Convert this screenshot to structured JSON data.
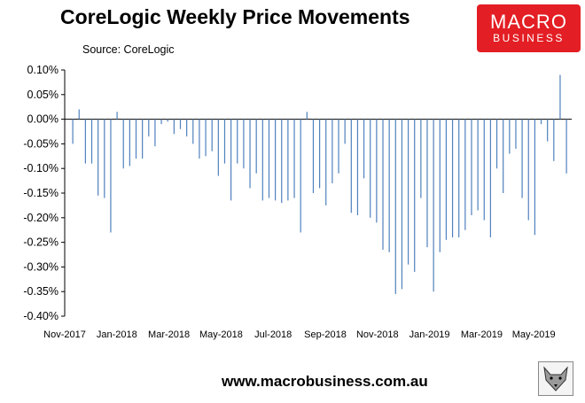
{
  "header": {
    "title": "CoreLogic Weekly Price Movements",
    "source": "Source: CoreLogic"
  },
  "logo": {
    "line1": "MACRO",
    "line2": "BUSINESS",
    "bg_color": "#e31e24"
  },
  "footer": {
    "website": "www.macrobusiness.com.au"
  },
  "colors": {
    "bar": "#4f81bd",
    "axis": "#000000"
  },
  "chart_data": {
    "type": "bar",
    "title": "CoreLogic Weekly Price Movements",
    "xlabel": "",
    "ylabel": "",
    "ylim": [
      -0.4,
      0.1
    ],
    "y_ticks": [
      0.1,
      0.05,
      0.0,
      -0.05,
      -0.1,
      -0.15,
      -0.2,
      -0.25,
      -0.3,
      -0.35,
      -0.4
    ],
    "y_tick_labels": [
      "0.10%",
      "0.05%",
      "0.00%",
      "-0.05%",
      "-0.10%",
      "-0.15%",
      "-0.20%",
      "-0.25%",
      "-0.30%",
      "-0.35%",
      "-0.40%"
    ],
    "x_tick_labels": [
      "Nov-2017",
      "Jan-2018",
      "Mar-2018",
      "May-2018",
      "Jul-2018",
      "Sep-2018",
      "Nov-2018",
      "Jan-2019",
      "Mar-2019",
      "May-2019"
    ],
    "grid": false,
    "legend": "none",
    "values": [
      -0.05,
      0.02,
      -0.09,
      -0.09,
      -0.155,
      -0.16,
      -0.23,
      0.015,
      -0.1,
      -0.095,
      -0.08,
      -0.08,
      -0.035,
      -0.055,
      -0.01,
      -0.005,
      -0.03,
      -0.02,
      -0.035,
      -0.05,
      -0.08,
      -0.075,
      -0.065,
      -0.115,
      -0.09,
      -0.165,
      -0.09,
      -0.1,
      -0.14,
      -0.11,
      -0.165,
      -0.16,
      -0.165,
      -0.17,
      -0.165,
      -0.16,
      -0.23,
      0.015,
      -0.15,
      -0.14,
      -0.175,
      -0.13,
      -0.11,
      -0.05,
      -0.19,
      -0.195,
      -0.12,
      -0.2,
      -0.21,
      -0.265,
      -0.27,
      -0.355,
      -0.345,
      -0.295,
      -0.31,
      -0.16,
      -0.26,
      -0.35,
      -0.27,
      -0.245,
      -0.24,
      -0.24,
      -0.225,
      -0.195,
      -0.185,
      -0.205,
      -0.24,
      -0.1,
      -0.15,
      -0.07,
      -0.06,
      -0.16,
      -0.205,
      -0.235,
      -0.01,
      -0.045,
      -0.085,
      0.09,
      -0.11
    ]
  }
}
